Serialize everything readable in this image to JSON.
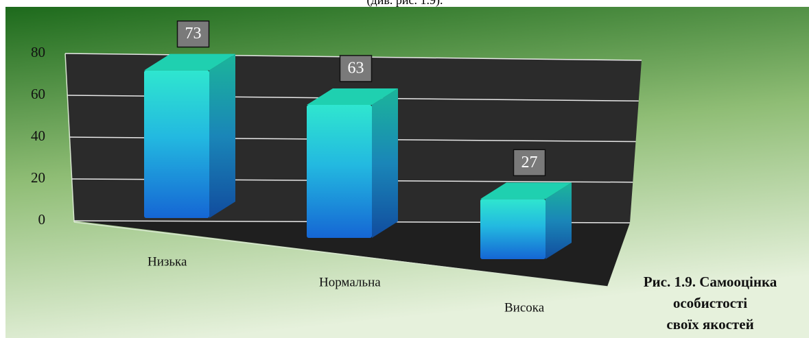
{
  "header_text": "(див. рис. 1.9).",
  "chart_data": {
    "type": "bar3d",
    "title": [
      "Рис. 1.9. Самооцінка",
      "особистості",
      "своїх якостей"
    ],
    "categories": [
      "Низька",
      "Нормальна",
      "Висока"
    ],
    "values": [
      73,
      63,
      27
    ],
    "ylim": [
      0,
      80
    ],
    "yticks": [
      0,
      20,
      40,
      60,
      80
    ],
    "grid": true
  }
}
